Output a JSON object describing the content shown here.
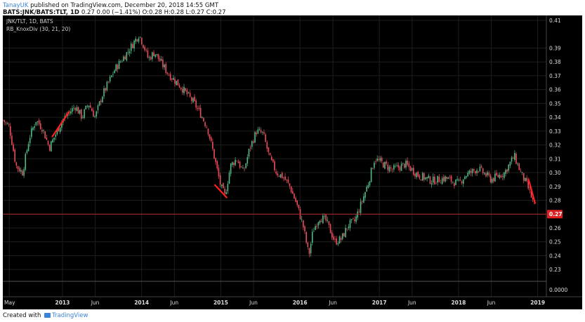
{
  "header": {
    "author": "TanayUK",
    "published_text": " published on TradingView.com, December 20, 2018 14:55 GMT",
    "symbol_line": "BATS:JNK/BATS:TLT, 1D",
    "ohlc_line": "0.27 0.00 (−1.41%) O:0.28 H:0.28 L:0.27 C:0.27"
  },
  "legend": {
    "series_label": "JNK/TLT, 1D, BATS",
    "indicator_label": "RB_KnoxDiv (30, 21, 20)"
  },
  "footer": {
    "created_with": "Created with",
    "brand": "TradingView"
  },
  "colors": {
    "background": "#000000",
    "up_candle": "#53b987",
    "down_candle": "#eb4d5c",
    "divergence_line": "#ff2020",
    "last_price_line": "#b22a2a",
    "last_price_badge": "#e02020",
    "grid": "#1e1e1e",
    "axis_text": "#dddddd"
  },
  "chart_data": {
    "type": "candlestick",
    "symbol": "JNK/TLT",
    "interval": "1D",
    "x_tick_labels": [
      "May",
      "2013",
      "Jun",
      "2014",
      "Jun",
      "2015",
      "Jun",
      "2016",
      "Jun",
      "2017",
      "Jun",
      "2018",
      "Jun",
      "2019"
    ],
    "x_tick_dates": [
      "2012-05-01",
      "2013-01-01",
      "2013-06-01",
      "2014-01-01",
      "2014-06-01",
      "2015-01-01",
      "2015-06-01",
      "2016-01-01",
      "2016-06-01",
      "2017-01-01",
      "2017-06-01",
      "2018-01-01",
      "2018-06-01",
      "2019-01-01"
    ],
    "x_range": [
      "2012-04-01",
      "2019-02-10"
    ],
    "y_tick_labels": [
      "0.41",
      "0.39",
      "0.38",
      "0.37",
      "0.36",
      "0.35",
      "0.34",
      "0.33",
      "0.32",
      "0.31",
      "0.30",
      "0.29",
      "0.28",
      "0.27",
      "0.26",
      "0.25",
      "0.24",
      "0.23"
    ],
    "y_range": [
      0.225,
      0.41
    ],
    "grid": true,
    "close_path": [
      {
        "date": "2012-04-01",
        "close": 0.338
      },
      {
        "date": "2012-05-01",
        "close": 0.333
      },
      {
        "date": "2012-06-01",
        "close": 0.305
      },
      {
        "date": "2012-07-01",
        "close": 0.3
      },
      {
        "date": "2012-08-01",
        "close": 0.325
      },
      {
        "date": "2012-09-01",
        "close": 0.338
      },
      {
        "date": "2012-10-01",
        "close": 0.332
      },
      {
        "date": "2012-11-01",
        "close": 0.318
      },
      {
        "date": "2013-01-01",
        "close": 0.338
      },
      {
        "date": "2013-03-01",
        "close": 0.348
      },
      {
        "date": "2013-04-01",
        "close": 0.34
      },
      {
        "date": "2013-05-01",
        "close": 0.35
      },
      {
        "date": "2013-06-01",
        "close": 0.34
      },
      {
        "date": "2013-07-01",
        "close": 0.355
      },
      {
        "date": "2013-09-01",
        "close": 0.375
      },
      {
        "date": "2013-11-01",
        "close": 0.388
      },
      {
        "date": "2013-12-20",
        "close": 0.4
      },
      {
        "date": "2014-01-10",
        "close": 0.392
      },
      {
        "date": "2014-02-01",
        "close": 0.382
      },
      {
        "date": "2014-03-01",
        "close": 0.387
      },
      {
        "date": "2014-05-01",
        "close": 0.372
      },
      {
        "date": "2014-07-01",
        "close": 0.362
      },
      {
        "date": "2014-09-01",
        "close": 0.35
      },
      {
        "date": "2014-10-01",
        "close": 0.342
      },
      {
        "date": "2014-11-01",
        "close": 0.332
      },
      {
        "date": "2014-12-01",
        "close": 0.312
      },
      {
        "date": "2015-01-01",
        "close": 0.29
      },
      {
        "date": "2015-01-20",
        "close": 0.283
      },
      {
        "date": "2015-02-15",
        "close": 0.305
      },
      {
        "date": "2015-03-15",
        "close": 0.31
      },
      {
        "date": "2015-04-15",
        "close": 0.3
      },
      {
        "date": "2015-05-15",
        "close": 0.318
      },
      {
        "date": "2015-06-15",
        "close": 0.33
      },
      {
        "date": "2015-07-15",
        "close": 0.328
      },
      {
        "date": "2015-08-15",
        "close": 0.31
      },
      {
        "date": "2015-09-15",
        "close": 0.3
      },
      {
        "date": "2015-10-15",
        "close": 0.297
      },
      {
        "date": "2015-11-15",
        "close": 0.29
      },
      {
        "date": "2015-12-15",
        "close": 0.278
      },
      {
        "date": "2016-01-15",
        "close": 0.262
      },
      {
        "date": "2016-02-11",
        "close": 0.24
      },
      {
        "date": "2016-03-01",
        "close": 0.258
      },
      {
        "date": "2016-04-01",
        "close": 0.268
      },
      {
        "date": "2016-05-01",
        "close": 0.265
      },
      {
        "date": "2016-06-10",
        "close": 0.25
      },
      {
        "date": "2016-07-10",
        "close": 0.252
      },
      {
        "date": "2016-08-10",
        "close": 0.262
      },
      {
        "date": "2016-09-10",
        "close": 0.265
      },
      {
        "date": "2016-10-10",
        "close": 0.278
      },
      {
        "date": "2016-11-10",
        "close": 0.292
      },
      {
        "date": "2016-12-10",
        "close": 0.31
      },
      {
        "date": "2017-01-01",
        "close": 0.308
      },
      {
        "date": "2017-03-01",
        "close": 0.302
      },
      {
        "date": "2017-05-01",
        "close": 0.306
      },
      {
        "date": "2017-07-01",
        "close": 0.298
      },
      {
        "date": "2017-09-01",
        "close": 0.294
      },
      {
        "date": "2017-11-01",
        "close": 0.296
      },
      {
        "date": "2018-01-01",
        "close": 0.292
      },
      {
        "date": "2018-02-01",
        "close": 0.298
      },
      {
        "date": "2018-04-01",
        "close": 0.303
      },
      {
        "date": "2018-06-01",
        "close": 0.295
      },
      {
        "date": "2018-08-01",
        "close": 0.3
      },
      {
        "date": "2018-09-15",
        "close": 0.312
      },
      {
        "date": "2018-10-15",
        "close": 0.3
      },
      {
        "date": "2018-11-15",
        "close": 0.29
      },
      {
        "date": "2018-12-20",
        "close": 0.275
      }
    ],
    "divergence_lines": [
      {
        "from": {
          "date": "2012-11-15",
          "value": 0.326
        },
        "to": {
          "date": "2013-02-01",
          "value": 0.344
        }
      },
      {
        "from": {
          "date": "2014-12-05",
          "value": 0.291
        },
        "to": {
          "date": "2015-01-28",
          "value": 0.282
        }
      },
      {
        "from": {
          "date": "2018-11-20",
          "value": 0.295
        },
        "to": {
          "date": "2018-12-20",
          "value": 0.278
        }
      }
    ],
    "last_price": 0.27,
    "last_price_label": "0.27",
    "indicator": {
      "name": "RB_KnoxDiv",
      "params": "(30, 21, 20)",
      "value_label": "0.0000"
    }
  }
}
